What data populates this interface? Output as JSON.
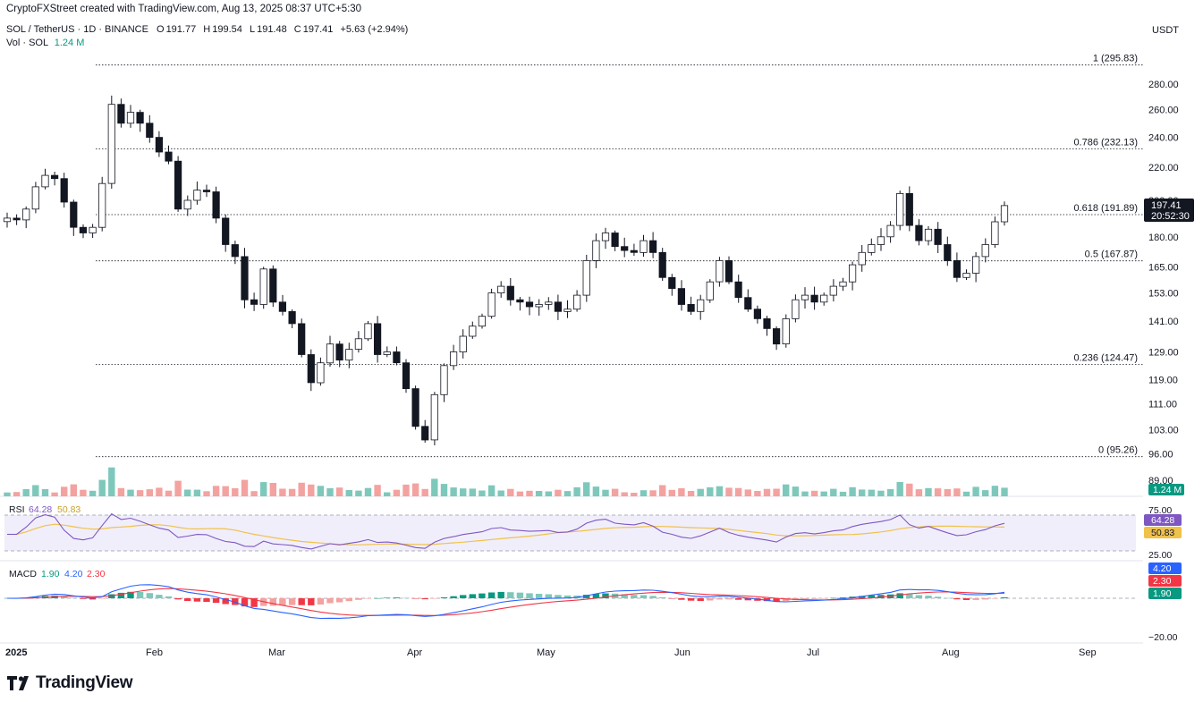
{
  "header": {
    "credit": "CryptoFXStreet created with TradingView.com, Aug 13, 2025 08:37 UTC+5:30",
    "symbol": "SOL / TetherUS · 1D · BINANCE",
    "o_label": "O",
    "o": "191.77",
    "h_label": "H",
    "h": "199.54",
    "l_label": "L",
    "l": "191.48",
    "c_label": "C",
    "c": "197.41",
    "change": "+5.63 (+2.94%)",
    "vol_label": "Vol · SOL",
    "vol_value": "1.24 M",
    "currency": "USDT"
  },
  "brand": {
    "name": "TradingView"
  },
  "chart_data": {
    "type": "candlestick",
    "price_axis": {
      "ticks": [
        "280.00",
        "260.00",
        "240.00",
        "220.00",
        "200.00",
        "180.00",
        "165.00",
        "153.00",
        "141.00",
        "129.00",
        "119.00",
        "111.00",
        "103.00",
        "96.00",
        "89.00"
      ],
      "scale": "log",
      "current_price": "197.41",
      "countdown": "20:52:30"
    },
    "fibonacci": [
      {
        "level": "1",
        "price": 295.83,
        "label": "1 (295.83)"
      },
      {
        "level": "0.786",
        "price": 232.13,
        "label": "0.786 (232.13)"
      },
      {
        "level": "0.618",
        "price": 191.89,
        "label": "0.618 (191.89)"
      },
      {
        "level": "0.5",
        "price": 167.87,
        "label": "0.5 (167.87)"
      },
      {
        "level": "0.236",
        "price": 124.47,
        "label": "0.236 (124.47)"
      },
      {
        "level": "0",
        "price": 95.26,
        "label": "0 (95.26)"
      }
    ],
    "time_axis": [
      "2025",
      "Feb",
      "Mar",
      "Apr",
      "May",
      "Jun",
      "Jul",
      "Aug",
      "Sep"
    ],
    "closes": [
      190,
      189,
      195,
      208,
      215,
      213,
      199,
      185,
      182,
      185,
      210,
      264,
      250,
      258,
      250,
      240,
      230,
      224,
      195,
      200,
      206,
      205,
      190,
      176,
      170,
      150,
      148,
      164,
      149,
      145,
      140,
      128,
      118,
      125,
      132,
      126,
      130,
      134,
      140,
      128,
      129,
      125,
      116,
      104,
      100,
      114,
      124,
      129,
      135,
      139,
      143,
      153,
      156,
      150,
      149,
      147,
      148,
      149,
      145,
      146,
      152,
      168,
      178,
      182,
      175,
      173,
      172,
      178,
      172,
      160,
      155,
      148,
      145,
      150,
      158,
      168,
      158,
      151,
      146,
      142,
      138,
      132,
      142,
      150,
      152,
      149,
      152,
      156,
      158,
      166,
      172,
      176,
      180,
      186,
      204,
      186,
      178,
      184,
      176,
      168,
      160,
      162,
      170,
      176,
      188,
      197
    ],
    "volume": {
      "current": "1.24 M"
    },
    "rsi": {
      "label": "RSI",
      "value": "64.28",
      "ma": "50.83",
      "levels": [
        "75.00",
        "25.00"
      ]
    },
    "macd": {
      "label": "MACD",
      "hist": "1.90",
      "macd": "4.20",
      "signal": "2.30",
      "ticks": [
        "−20.00"
      ]
    }
  },
  "colors": {
    "up": "#089981",
    "down": "#131722",
    "vol_up": "#7ec8bb",
    "vol_down": "#f3a2a0",
    "rsi": "#7e57c2",
    "rsi_ma": "#f0c14b",
    "macd": "#2962ff",
    "signal": "#f23645"
  }
}
